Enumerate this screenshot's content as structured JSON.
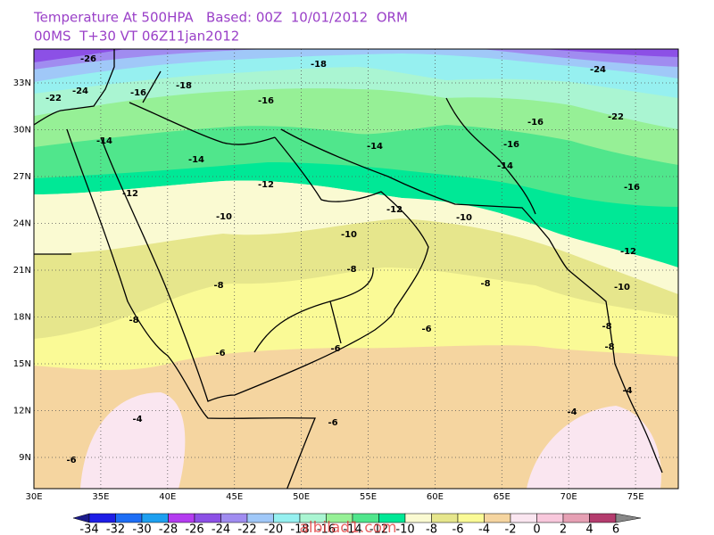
{
  "header": {
    "line1": "Temperature At 500HPA   Based: 00Z  10/01/2012  ORM",
    "line2": "00MS  T+30 VT 06Z11jan2012"
  },
  "map": {
    "lon_labels": [
      "30E",
      "35E",
      "40E",
      "45E",
      "50E",
      "55E",
      "60E",
      "65E",
      "70E",
      "75E"
    ],
    "lat_labels": [
      "33N",
      "30N",
      "27N",
      "24N",
      "21N",
      "18N",
      "15N",
      "12N",
      "9N"
    ],
    "contour_labels": [
      -26,
      -24,
      -22,
      -18,
      -18,
      -16,
      -16,
      -16,
      -16,
      -24,
      -22,
      -14,
      -14,
      -14,
      -14,
      -12,
      -12,
      -12,
      -16,
      -10,
      -10,
      -10,
      -12,
      -10,
      -8,
      -8,
      -8,
      -8,
      -8,
      -8,
      -6,
      -6,
      -6,
      -4,
      -4,
      -4,
      -6,
      -6
    ],
    "watermark": "albilad1.com"
  },
  "colorbar": {
    "levels": [
      -34,
      -32,
      -30,
      -28,
      -26,
      -24,
      -22,
      -20,
      -18,
      -16,
      -14,
      -12,
      -10,
      -8,
      -6,
      -4,
      -2,
      0,
      2,
      4,
      6
    ],
    "colors": [
      "#1c1c8c",
      "#1e1ee6",
      "#1e6ef5",
      "#1ea0f0",
      "#b43cf0",
      "#8c50e6",
      "#a08cf0",
      "#a0c8f8",
      "#96f0f0",
      "#aaf5d2",
      "#96f096",
      "#50e68c",
      "#00e896",
      "#fafad2",
      "#e6e68c",
      "#fafa96",
      "#f5d5a0",
      "#fae6f0",
      "#f8c8dc",
      "#e6a0b4",
      "#b43c6e",
      "#888888"
    ]
  }
}
